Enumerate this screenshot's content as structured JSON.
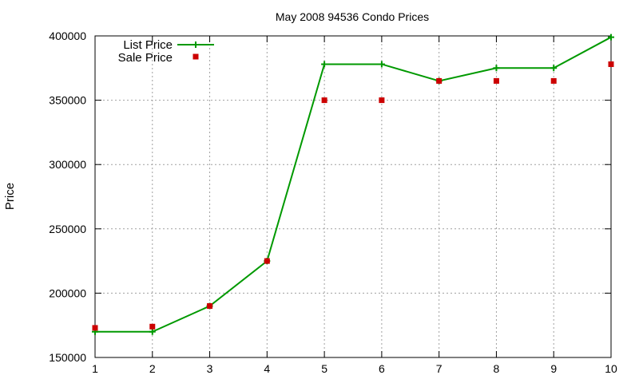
{
  "chart_data": {
    "type": "line",
    "title": "May 2008 94536 Condo Prices",
    "xlabel": "",
    "ylabel": "Price",
    "x": [
      1,
      2,
      3,
      4,
      5,
      6,
      7,
      8,
      9,
      10
    ],
    "xlim": [
      1,
      10
    ],
    "ylim": [
      150000,
      400000
    ],
    "x_ticks": [
      "1",
      "2",
      "3",
      "4",
      "5",
      "6",
      "7",
      "8",
      "9",
      "10"
    ],
    "y_ticks": [
      "150000",
      "200000",
      "250000",
      "300000",
      "350000",
      "400000"
    ],
    "grid": true,
    "legend_position": "top-left",
    "series": [
      {
        "name": "List Price",
        "style": "line-with-plus-markers",
        "color": "#009900",
        "values": [
          170000,
          170000,
          190000,
          225000,
          378000,
          378000,
          365000,
          375000,
          375000,
          399000
        ]
      },
      {
        "name": "Sale Price",
        "style": "square-markers",
        "color": "#cc0000",
        "values": [
          173000,
          174000,
          190000,
          225000,
          350000,
          350000,
          365000,
          365000,
          365000,
          378000
        ]
      }
    ]
  }
}
